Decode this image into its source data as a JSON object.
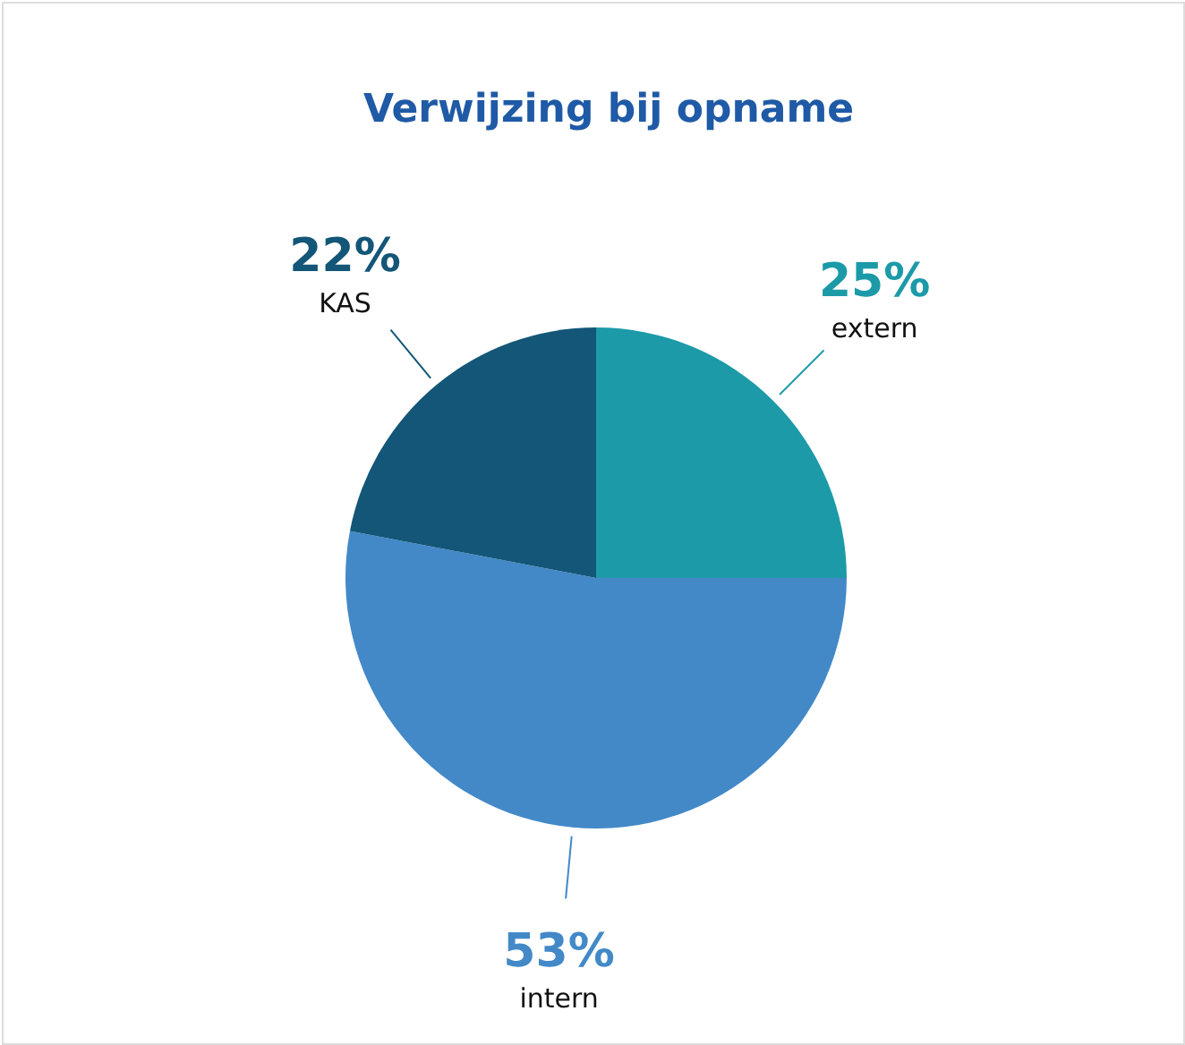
{
  "chart_data": {
    "type": "pie",
    "title": "Verwijzing bij opname",
    "categories": [
      "extern",
      "intern",
      "KAS"
    ],
    "values": [
      25,
      53,
      22
    ],
    "value_labels": [
      "25%",
      "53%",
      "22%"
    ],
    "colors": [
      "#1c9aa8",
      "#4389c8",
      "#135677"
    ]
  }
}
